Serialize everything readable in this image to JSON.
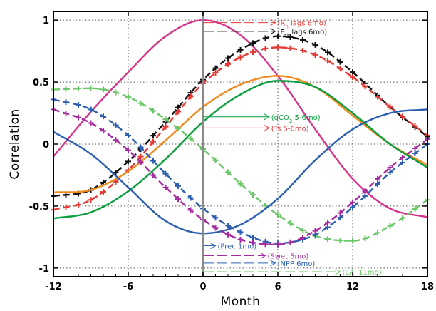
{
  "chart_data": {
    "type": "line",
    "xlabel": "Month",
    "ylabel": "Correlation",
    "xlim": [
      -12,
      18
    ],
    "ylim": [
      -1.07,
      1.07
    ],
    "xticks": [
      -12,
      -6,
      0,
      6,
      12,
      18
    ],
    "xtick_labels": [
      "-12",
      "-6",
      "0",
      "6",
      "12",
      "18"
    ],
    "yticks": [
      1,
      0.5,
      0,
      -0.5,
      -1
    ],
    "ytick_labels": [
      "1",
      "0.5",
      "0",
      "-0.5",
      "-1"
    ],
    "grid": true,
    "grid_style": "dotted",
    "reference_line_x": 0,
    "reference_line_color": "#8a8a8a",
    "series": [
      {
        "color": "#d6338a",
        "dash": false,
        "markers": false,
        "x": [
          -12,
          -9,
          -6,
          -3,
          0,
          3,
          6,
          9,
          12,
          15,
          18
        ],
        "y": [
          -0.1,
          0.26,
          0.58,
          0.87,
          1.0,
          0.88,
          0.55,
          0.12,
          -0.28,
          -0.52,
          -0.59
        ]
      },
      {
        "color": "#111111",
        "dash": true,
        "markers": true,
        "x": [
          -12,
          -9,
          -6,
          -3,
          0,
          3,
          6,
          9,
          12,
          15,
          18
        ],
        "y": [
          -0.42,
          -0.37,
          -0.14,
          0.18,
          0.52,
          0.76,
          0.87,
          0.8,
          0.58,
          0.3,
          0.06
        ]
      },
      {
        "color": "#e53935",
        "dash": true,
        "markers": true,
        "x": [
          -12,
          -9,
          -6,
          -3,
          0,
          3,
          6,
          9,
          12,
          15,
          18
        ],
        "y": [
          -0.53,
          -0.45,
          -0.21,
          0.14,
          0.49,
          0.7,
          0.78,
          0.72,
          0.54,
          0.3,
          0.07
        ]
      },
      {
        "color": "#f08a1c",
        "dash": false,
        "markers": false,
        "x": [
          -12,
          -9,
          -6,
          -3,
          0,
          3,
          6,
          9,
          12,
          15,
          18
        ],
        "y": [
          -0.39,
          -0.37,
          -0.22,
          0.03,
          0.3,
          0.48,
          0.55,
          0.46,
          0.23,
          0.0,
          -0.17
        ]
      },
      {
        "color": "#0a9e3c",
        "dash": false,
        "markers": false,
        "x": [
          -12,
          -9,
          -6,
          -3,
          0,
          3,
          6,
          9,
          12,
          15,
          18
        ],
        "y": [
          -0.6,
          -0.55,
          -0.38,
          -0.12,
          0.18,
          0.4,
          0.51,
          0.46,
          0.25,
          0.0,
          -0.19
        ]
      },
      {
        "color": "#6cc76a",
        "dash": true,
        "markers": true,
        "x": [
          -12,
          -9,
          -6,
          -3,
          0,
          3,
          6,
          9,
          12,
          15,
          18
        ],
        "y": [
          0.44,
          0.45,
          0.38,
          0.2,
          -0.04,
          -0.32,
          -0.57,
          -0.74,
          -0.78,
          -0.66,
          -0.45
        ]
      },
      {
        "color": "#2d5fb0",
        "dash": false,
        "markers": false,
        "x": [
          -12,
          -9,
          -6,
          -3,
          0,
          3,
          6,
          9,
          12,
          15,
          18
        ],
        "y": [
          0.1,
          -0.08,
          -0.35,
          -0.62,
          -0.72,
          -0.65,
          -0.44,
          -0.13,
          0.12,
          0.25,
          0.28
        ]
      },
      {
        "color": "#2d5fb0",
        "dash": true,
        "markers": true,
        "x": [
          -12,
          -9,
          -6,
          -3,
          0,
          3,
          6,
          9,
          12,
          15,
          18
        ],
        "y": [
          0.36,
          0.28,
          0.07,
          -0.24,
          -0.52,
          -0.71,
          -0.8,
          -0.73,
          -0.51,
          -0.23,
          0.0
        ]
      },
      {
        "color": "#a82aa0",
        "dash": true,
        "markers": true,
        "x": [
          -12,
          -9,
          -6,
          -3,
          0,
          3,
          6,
          9,
          12,
          15,
          18
        ],
        "y": [
          0.28,
          0.17,
          -0.05,
          -0.35,
          -0.61,
          -0.77,
          -0.81,
          -0.7,
          -0.47,
          -0.19,
          0.04
        ]
      }
    ],
    "annotations": [
      {
        "parts": [
          [
            "(R",
            false
          ],
          [
            "h",
            true
          ],
          [
            " lags 6mo)",
            false
          ]
        ],
        "color": "#e53935",
        "y": 0.98,
        "x_end": 5.8,
        "dash": true
      },
      {
        "parts": [
          [
            "(F",
            false
          ],
          [
            "ta",
            true
          ],
          [
            " lags 6mo)",
            false
          ]
        ],
        "color": "#111111",
        "y": 0.91,
        "x_end": 5.8,
        "dash": true
      },
      {
        "parts": [
          [
            "(gCO",
            false
          ],
          [
            "2",
            true
          ],
          [
            " 5-6mo)",
            false
          ]
        ],
        "color": "#0a9e3c",
        "y": 0.22,
        "x_end": 5.3,
        "dash": false
      },
      {
        "parts": [
          [
            "(Ts 5-6mo)",
            false
          ]
        ],
        "color": "#e53935",
        "y": 0.13,
        "x_end": 5.3,
        "dash": false
      },
      {
        "parts": [
          [
            "(Prec 1mo)",
            false
          ]
        ],
        "color": "#2d5fb0",
        "y": -0.82,
        "x_end": 1.0,
        "dash": false
      },
      {
        "parts": [
          [
            "(Swet 5mo)",
            false
          ]
        ],
        "color": "#a82aa0",
        "y": -0.9,
        "x_end": 5.0,
        "dash": true
      },
      {
        "parts": [
          [
            "(NPP 6mo)",
            false
          ]
        ],
        "color": "#2d5fb0",
        "y": -0.96,
        "x_end": 5.8,
        "dash": true
      },
      {
        "parts": [
          [
            "(LAI 11mo)",
            false
          ]
        ],
        "color": "#6cc76a",
        "y": -1.03,
        "x_end": 11.0,
        "dash": true
      }
    ]
  }
}
